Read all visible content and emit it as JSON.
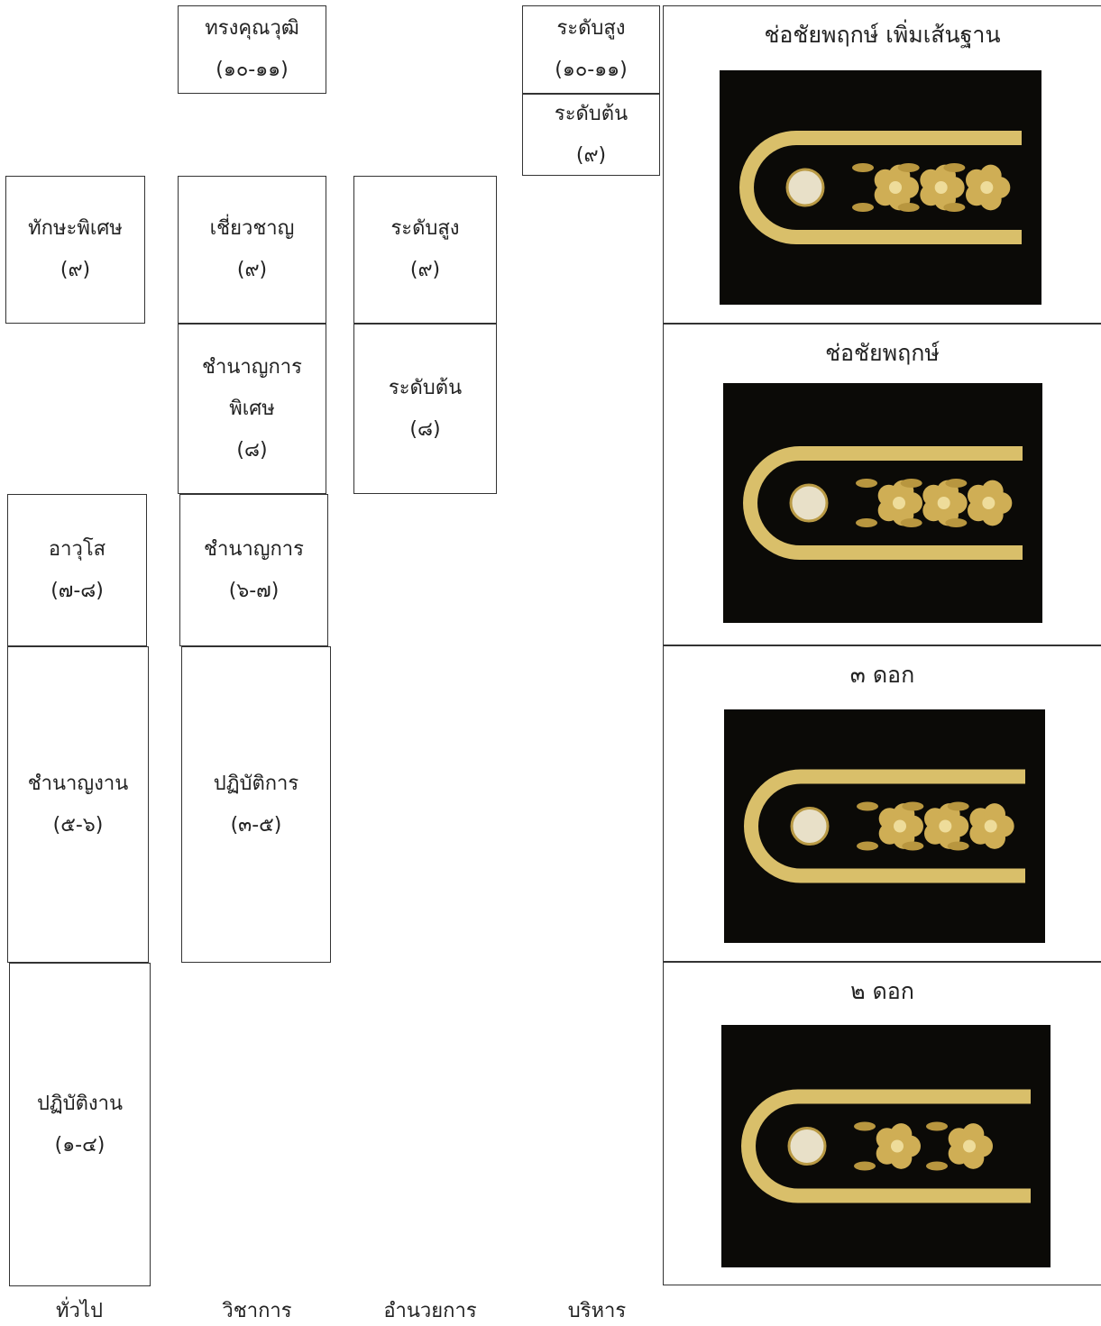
{
  "columns": {
    "general": {
      "footer": "ทั่วไป",
      "boxes": [
        {
          "lines": [
            "ทักษะพิเศษ",
            "(๙)"
          ]
        },
        {
          "lines": [
            "อาวุโส",
            "(๗-๘)"
          ]
        },
        {
          "lines": [
            "ชำนาญงาน",
            "(๕-๖)"
          ]
        },
        {
          "lines": [
            "ปฏิบัติงาน",
            "(๑-๔)"
          ]
        }
      ]
    },
    "academic": {
      "footer": "วิชาการ",
      "boxes": [
        {
          "lines": [
            "ทรงคุณวุฒิ",
            "(๑๐-๑๑)"
          ]
        },
        {
          "lines": [
            "เชี่ยวชาญ",
            "(๙)"
          ]
        },
        {
          "lines": [
            "ชำนาญการ",
            "พิเศษ",
            "(๘)"
          ]
        },
        {
          "lines": [
            "ชำนาญการ",
            "(๖-๗)"
          ]
        },
        {
          "lines": [
            "ปฏิบัติการ",
            "(๓-๕)"
          ]
        }
      ]
    },
    "director": {
      "footer": "อำนวยการ",
      "boxes": [
        {
          "lines": [
            "ระดับสูง",
            "(๙)"
          ]
        },
        {
          "lines": [
            "ระดับต้น",
            "(๘)"
          ]
        }
      ]
    },
    "executive": {
      "footer": "บริหาร",
      "boxes": [
        {
          "lines": [
            "ระดับสูง",
            "(๑๐-๑๑)"
          ]
        },
        {
          "lines": [
            "ระดับต้น",
            "(๙)"
          ]
        }
      ]
    }
  },
  "insignia": [
    {
      "label": "ช่อชัยพฤกษ์ เพิ่มเส้นฐาน"
    },
    {
      "label": "ช่อชัยพฤกษ์"
    },
    {
      "label": "๓ ดอก"
    },
    {
      "label": "๒ ดอก"
    }
  ]
}
